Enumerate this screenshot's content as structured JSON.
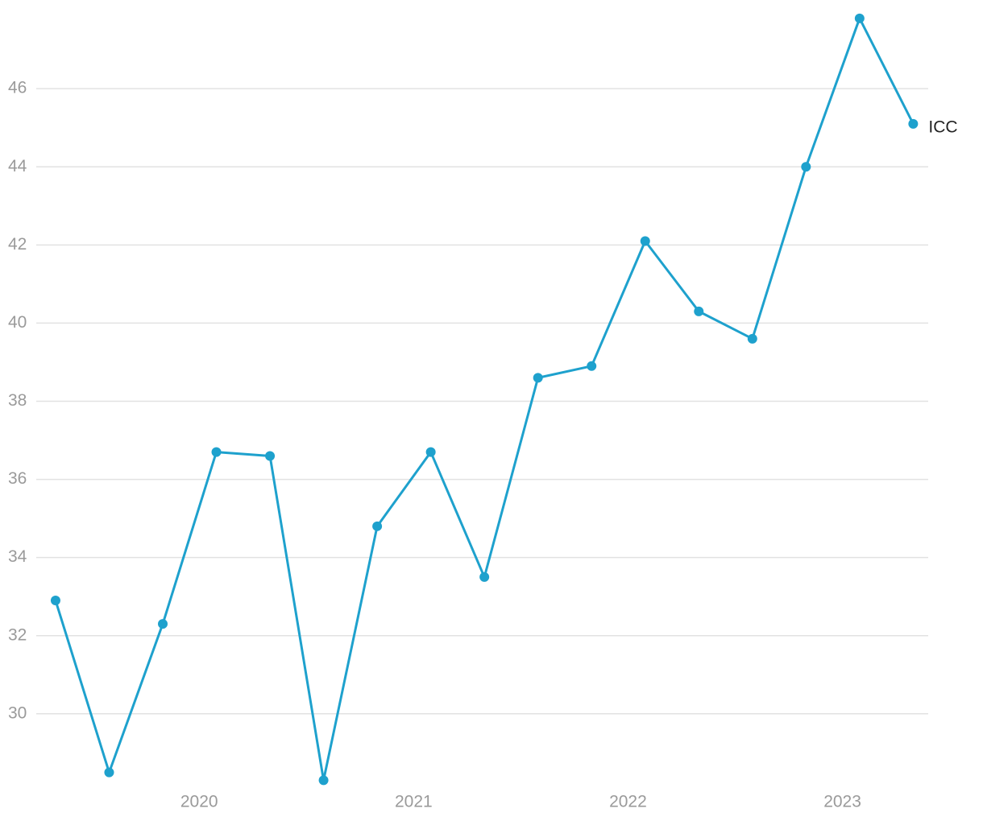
{
  "chart_data": {
    "type": "line",
    "x": [
      2019.33,
      2019.58,
      2019.83,
      2020.08,
      2020.33,
      2020.58,
      2020.83,
      2021.08,
      2021.33,
      2021.58,
      2021.83,
      2022.08,
      2022.33,
      2022.58,
      2022.83,
      2023.08,
      2023.33
    ],
    "series": [
      {
        "name": "ICC",
        "color": "#1ea1cd",
        "values": [
          32.9,
          28.5,
          32.3,
          36.7,
          36.6,
          28.3,
          34.8,
          36.7,
          33.5,
          38.6,
          38.9,
          42.1,
          40.3,
          39.6,
          44.0,
          47.8,
          45.1
        ]
      }
    ],
    "xlim": [
      2019.24,
      2023.4
    ],
    "xticks": [
      2020,
      2021,
      2022,
      2023
    ],
    "ylim": [
      28.08,
      48.27
    ],
    "yticks": [
      30,
      32,
      34,
      36,
      38,
      40,
      42,
      44,
      46
    ],
    "grid": true
  }
}
